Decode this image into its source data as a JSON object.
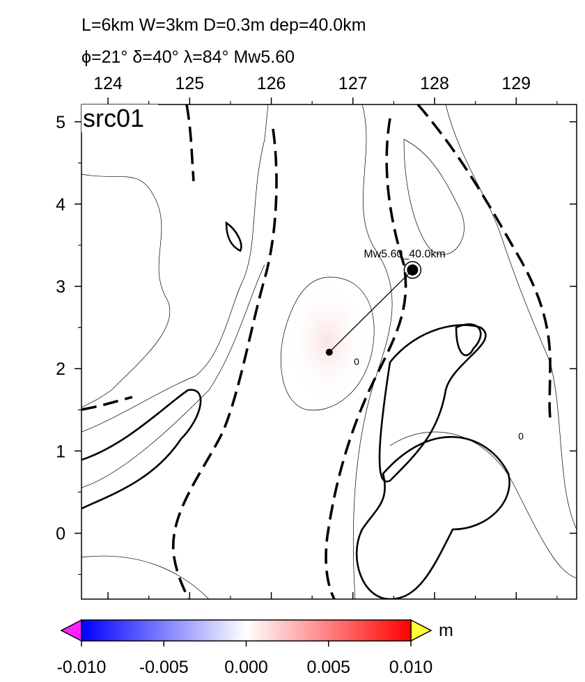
{
  "header": {
    "line1": "L=6km W=3km D=0.3m dep=40.0km",
    "line2": "ϕ=21° δ=40° λ=84° Mw5.60"
  },
  "map": {
    "panel_label": "src01",
    "xlim": [
      123.675,
      129.74
    ],
    "ylim": [
      -0.8,
      5.21
    ],
    "xticks": [
      124,
      125,
      126,
      127,
      128,
      129
    ],
    "yticks": [
      0,
      1,
      2,
      3,
      4,
      5
    ],
    "centroid": [
      126.71,
      2.2
    ],
    "event": [
      127.73,
      3.2
    ],
    "event_label": "Mw5.60_40.0km",
    "contour_labels": [
      "0",
      "0"
    ]
  },
  "colorbar": {
    "lim": [
      -0.01,
      0.01
    ],
    "unit": "m",
    "ticks": [
      {
        "value": -0.01,
        "label": "-0.010"
      },
      {
        "value": -0.005,
        "label": "-0.005"
      },
      {
        "value": 0,
        "label": "0.000"
      },
      {
        "value": 0.005,
        "label": "0.005"
      },
      {
        "value": 0.01,
        "label": "0.010"
      }
    ]
  }
}
